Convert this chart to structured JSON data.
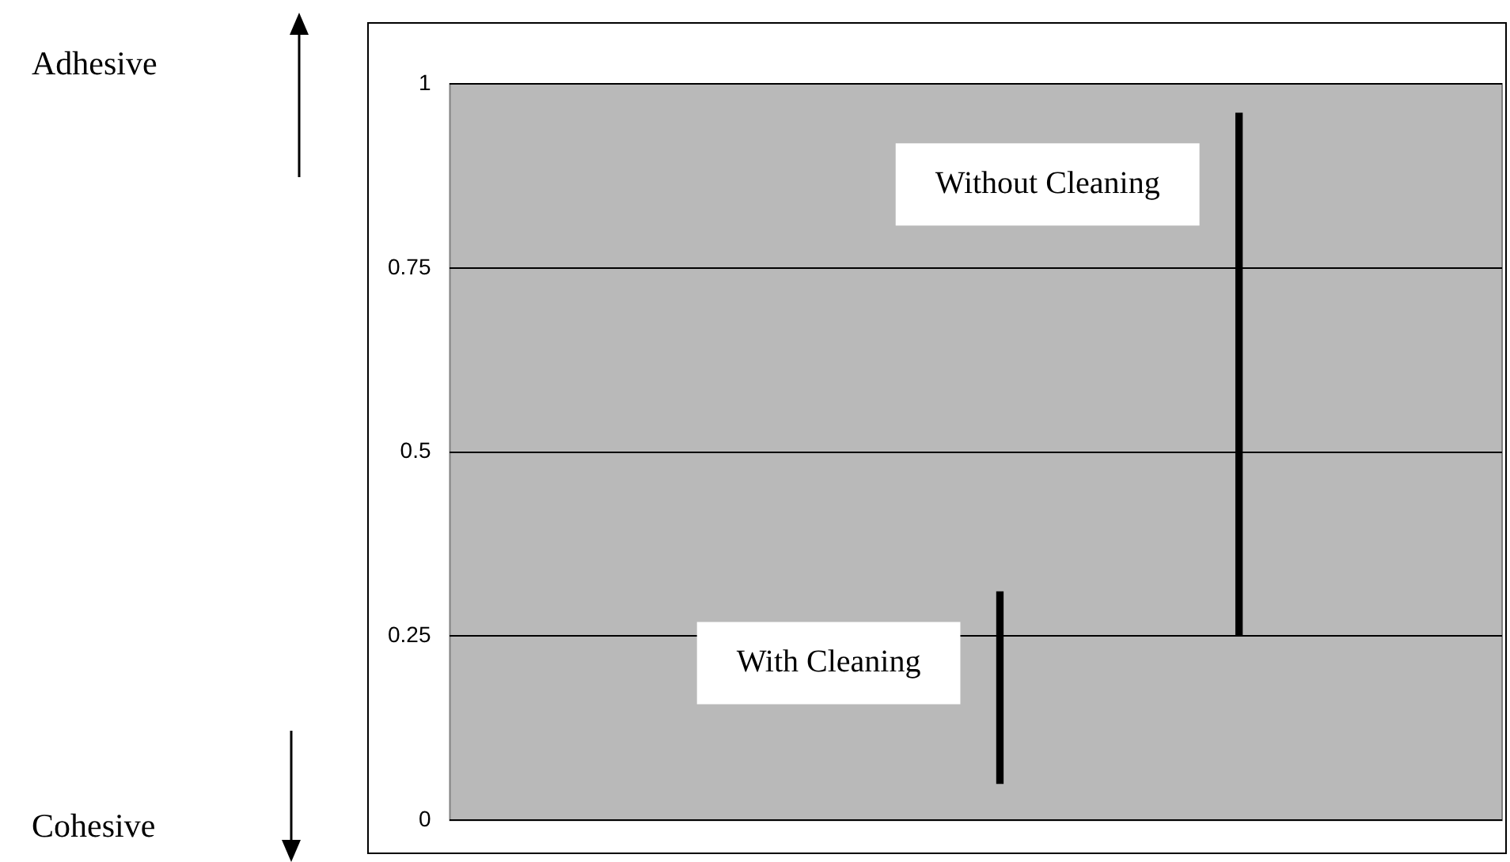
{
  "chart_data": {
    "type": "bar",
    "categories": [
      null,
      null,
      null,
      null,
      null,
      null,
      null,
      null,
      null,
      null,
      null,
      null,
      null,
      null,
      null,
      null,
      null,
      null,
      null,
      null,
      null,
      null
    ],
    "series": [
      {
        "name": "With Cleaning",
        "color": "#000000",
        "base": [
          null,
          null,
          null,
          null,
          null,
          null,
          null,
          null,
          null,
          null,
          null,
          0.05,
          null,
          null,
          null,
          null,
          null,
          null,
          null,
          null,
          null,
          null
        ],
        "values": [
          null,
          null,
          null,
          null,
          null,
          null,
          null,
          null,
          null,
          null,
          null,
          0.26,
          null,
          null,
          null,
          null,
          null,
          null,
          null,
          null,
          null,
          null
        ]
      },
      {
        "name": "Without Cleaning",
        "color": "#000000",
        "base": [
          null,
          null,
          null,
          null,
          null,
          null,
          null,
          null,
          null,
          null,
          null,
          null,
          null,
          null,
          null,
          null,
          0.25,
          null,
          null,
          null,
          null,
          null
        ],
        "values": [
          null,
          null,
          null,
          null,
          null,
          null,
          null,
          null,
          null,
          null,
          null,
          null,
          null,
          null,
          null,
          null,
          0.71,
          null,
          null,
          null,
          null,
          null
        ]
      }
    ],
    "ylim": [
      0,
      1
    ],
    "yticks": [
      0,
      0.25,
      0.5,
      0.75,
      1
    ],
    "grid": "y",
    "tick_labels": "y",
    "annotations": [
      "Adhesive",
      "Cohesive"
    ]
  }
}
